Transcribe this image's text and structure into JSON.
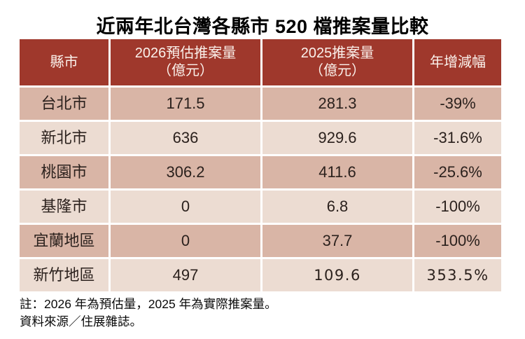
{
  "title": "近兩年北台灣各縣市 520 檔推案量比較",
  "colors": {
    "header_bg": "#9F382C",
    "header_text": "#FBF2EC",
    "row_dark_bg": "#D9B5A6",
    "row_light_bg": "#ECDCD2",
    "cell_text": "#2B211D",
    "separator": "#FFFFFF",
    "page_bg": "#FFFFFF"
  },
  "table": {
    "header": {
      "col1": "縣市",
      "col2_line1": "2026預估推案量",
      "col2_line2": "（億元）",
      "col3_line1": "2025推案量",
      "col3_line2": "（億元）",
      "col4": "年增減幅"
    },
    "rows": [
      {
        "city": "台北市",
        "y2026": "171.5",
        "y2025": "281.3",
        "yoy": "-39%"
      },
      {
        "city": "新北市",
        "y2026": "636",
        "y2025": "929.6",
        "yoy": "-31.6%"
      },
      {
        "city": "桃園市",
        "y2026": "306.2",
        "y2025": "411.6",
        "yoy": "-25.6%"
      },
      {
        "city": "基隆市",
        "y2026": "0",
        "y2025": "6.8",
        "yoy": "-100%"
      },
      {
        "city": "宜蘭地區",
        "y2026": "0",
        "y2025": "37.7",
        "yoy": "-100%"
      },
      {
        "city": "新竹地區",
        "y2026": "497",
        "y2025": "109.6",
        "yoy": "353.5%"
      }
    ]
  },
  "notes": {
    "line1": "註：2026 年為預估量，2025 年為實際推案量。",
    "line2": "資料來源／住展雜誌。"
  },
  "chart_data": {
    "type": "table",
    "title": "近兩年北台灣各縣市 520 檔推案量比較",
    "columns": [
      "縣市",
      "2026預估推案量（億元）",
      "2025推案量（億元）",
      "年增減幅"
    ],
    "rows": [
      [
        "台北市",
        171.5,
        281.3,
        "-39%"
      ],
      [
        "新北市",
        636,
        929.6,
        "-31.6%"
      ],
      [
        "桃園市",
        306.2,
        411.6,
        "-25.6%"
      ],
      [
        "基隆市",
        0,
        6.8,
        "-100%"
      ],
      [
        "宜蘭地區",
        0,
        37.7,
        "-100%"
      ],
      [
        "新竹地區",
        497,
        109.6,
        "353.5%"
      ]
    ],
    "notes": [
      "註：2026 年為預估量，2025 年為實際推案量。",
      "資料來源／住展雜誌。"
    ]
  }
}
